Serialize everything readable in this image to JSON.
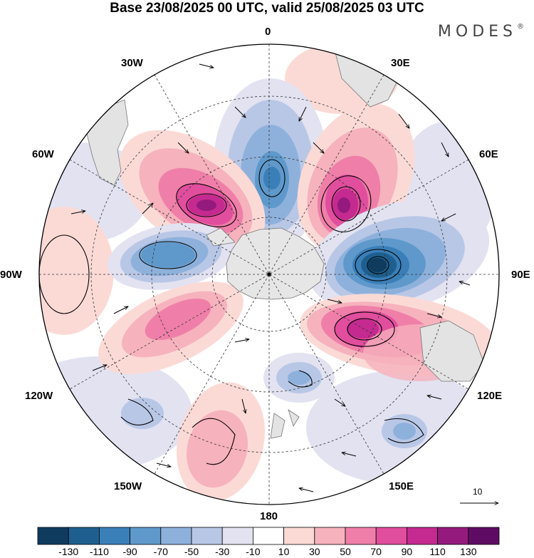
{
  "title": "Base 23/08/2025 00 UTC, valid 25/08/2025 03 UTC",
  "brand": "MODES",
  "brand_mark": "®",
  "longitude_labels": {
    "top": "0",
    "top_left": "30W",
    "top_right": "30E",
    "upper_left": "60W",
    "upper_right": "60E",
    "left": "90W",
    "right": "90E",
    "lower_left": "120W",
    "lower_right": "120E",
    "bottom_left": "150W",
    "bottom_right": "150E",
    "bottom": "180"
  },
  "reference_vector": {
    "label": "10"
  },
  "colorbar": {
    "labels": [
      "-130",
      "-110",
      "-90",
      "-70",
      "-50",
      "-30",
      "-10",
      "10",
      "30",
      "50",
      "70",
      "90",
      "110",
      "130"
    ],
    "colors": [
      "#0f3b5e",
      "#1e5f8f",
      "#3b7fb8",
      "#5f99cb",
      "#8eb1dc",
      "#b9c7e6",
      "#e2e2f1",
      "#ffffff",
      "#fbdad6",
      "#f6b2bd",
      "#ef7fa8",
      "#e04e9d",
      "#c42a8f",
      "#941a7d",
      "#5e0c63"
    ]
  }
}
